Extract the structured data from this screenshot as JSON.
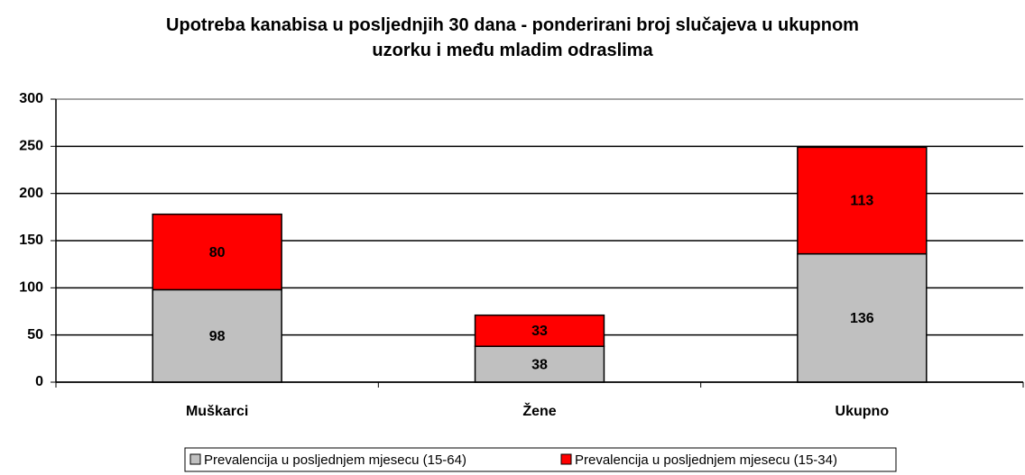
{
  "chart_data": {
    "type": "stacked_bar",
    "title": "Upotreba kanabisa u posljednjih 30 dana - ponderirani broj slučajeva u ukupnom uzorku i među mladim odraslima",
    "categories": [
      "Muškarci",
      "Žene",
      "Ukupno"
    ],
    "series": [
      {
        "name": "Prevalencija u posljednjem mjesecu (15-64)",
        "color": "#c0c0c0",
        "values": [
          98,
          38,
          136
        ]
      },
      {
        "name": "Prevalencija u posljednjem mjesecu (15-34)",
        "color": "#ff0000",
        "values": [
          80,
          33,
          113
        ]
      }
    ],
    "ylim": [
      0,
      300
    ],
    "yticks": [
      0,
      50,
      100,
      150,
      200,
      250,
      300
    ],
    "grid": true,
    "legend": "bottom"
  }
}
